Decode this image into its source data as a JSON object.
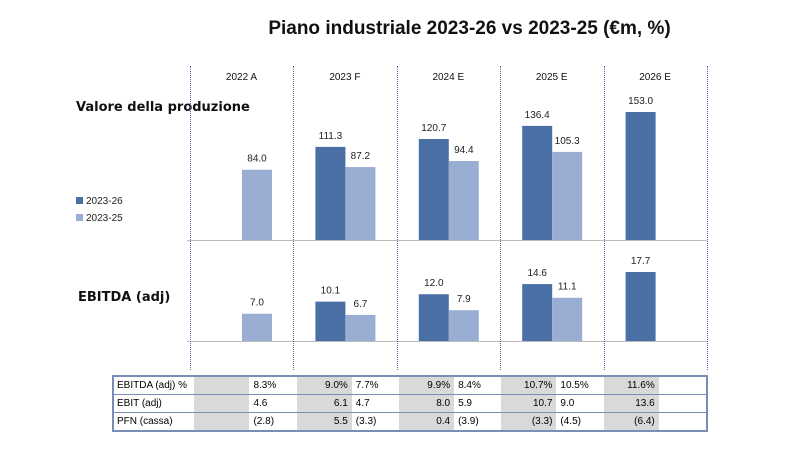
{
  "chart_data": {
    "type": "bar",
    "title": "Piano industriale 2023-26 vs 2023-25 (€m, %)",
    "categories": [
      "2022 A",
      "2023 F",
      "2024 E",
      "2025 E",
      "2026 E"
    ],
    "legend": [
      {
        "name": "2023-26",
        "color": "#4a6fa5"
      },
      {
        "name": "2023-25",
        "color": "#9aaed4"
      }
    ],
    "panels": [
      {
        "label": "Valore della produzione",
        "series": [
          {
            "name": "2023-26",
            "values": [
              null,
              111.3,
              120.7,
              136.4,
              153.0
            ]
          },
          {
            "name": "2023-25",
            "values": [
              84.0,
              87.2,
              94.4,
              105.3,
              null
            ]
          }
        ]
      },
      {
        "label": "EBITDA (adj)",
        "series": [
          {
            "name": "2023-26",
            "values": [
              null,
              10.1,
              12.0,
              14.6,
              17.7
            ]
          },
          {
            "name": "2023-25",
            "values": [
              7.0,
              6.7,
              7.9,
              11.1,
              null
            ]
          }
        ]
      }
    ],
    "table": [
      {
        "label": "EBITDA (adj) %",
        "values": [
          [
            "",
            "8.3%"
          ],
          [
            "9.0%",
            "7.7%"
          ],
          [
            "9.9%",
            "8.4%"
          ],
          [
            "10.7%",
            "10.5%"
          ],
          [
            "11.6%",
            ""
          ]
        ]
      },
      {
        "label": "EBIT (adj)",
        "values": [
          [
            "",
            "4.6"
          ],
          [
            "6.1",
            "4.7"
          ],
          [
            "8.0",
            "5.9"
          ],
          [
            "10.7",
            "9.0"
          ],
          [
            "13.6",
            ""
          ]
        ]
      },
      {
        "label": "PFN (cassa)",
        "values": [
          [
            "",
            "(2.8)"
          ],
          [
            "5.5",
            "(3.3)"
          ],
          [
            "0.4",
            "(3.9)"
          ],
          [
            "(3.3)",
            "(4.5)"
          ],
          [
            "(6.4)",
            ""
          ]
        ]
      }
    ]
  }
}
